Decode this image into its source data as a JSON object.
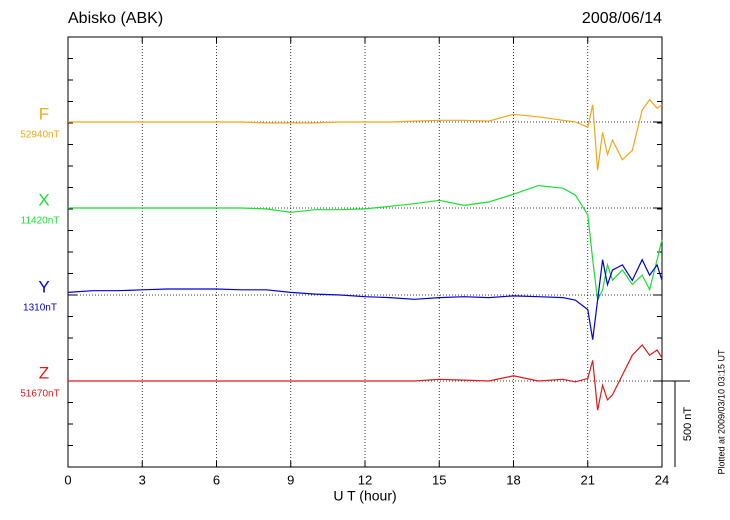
{
  "chart_data": {
    "type": "line",
    "title": "Abisko (ABK)",
    "date": "2008/06/14",
    "x_label": "U T (hour)",
    "footnote": "Plotted at 2009/03/10 03:15 UT",
    "xlim": [
      0,
      24
    ],
    "xticks": [
      0,
      3,
      6,
      9,
      12,
      15,
      18,
      21,
      24
    ],
    "grid": true,
    "scale_bar": {
      "value": 500,
      "label": "500 nT"
    },
    "x": [
      0,
      1,
      2,
      3,
      4,
      5,
      6,
      7,
      8,
      9,
      10,
      11,
      12,
      13,
      14,
      15,
      16,
      17,
      18,
      19,
      20,
      20.5,
      21,
      21.2,
      21.4,
      21.6,
      21.8,
      22,
      22.4,
      22.8,
      23.2,
      23.5,
      23.8,
      24
    ],
    "series": [
      {
        "name": "F",
        "color": "#f0a818",
        "baseline": {
          "value": 52940,
          "label": "52940nT"
        },
        "values": [
          52940,
          52940,
          52940,
          52940,
          52940,
          52940,
          52940,
          52940,
          52935,
          52935,
          52935,
          52940,
          52940,
          52940,
          52945,
          52950,
          52950,
          52945,
          52985,
          52970,
          52950,
          52940,
          52910,
          53040,
          52660,
          52880,
          52750,
          52835,
          52720,
          52775,
          53010,
          53070,
          53020,
          53040
        ]
      },
      {
        "name": "X",
        "color": "#18e030",
        "baseline": {
          "value": 11420,
          "label": "11420nT"
        },
        "values": [
          11420,
          11420,
          11420,
          11420,
          11420,
          11420,
          11420,
          11420,
          11415,
          11395,
          11410,
          11410,
          11415,
          11430,
          11445,
          11465,
          11435,
          11455,
          11500,
          11550,
          11535,
          11495,
          11380,
          11120,
          10885,
          10945,
          11090,
          11000,
          11060,
          10975,
          11030,
          10945,
          11120,
          11235
        ]
      },
      {
        "name": "Y",
        "color": "#0000d8",
        "baseline": {
          "value": 1310,
          "label": "1310nT"
        },
        "values": [
          1325,
          1335,
          1335,
          1340,
          1345,
          1345,
          1345,
          1340,
          1340,
          1325,
          1315,
          1310,
          1300,
          1295,
          1285,
          1295,
          1300,
          1295,
          1305,
          1300,
          1295,
          1280,
          1225,
          1050,
          1280,
          1515,
          1370,
          1455,
          1485,
          1395,
          1515,
          1425,
          1485,
          1395
        ]
      },
      {
        "name": "Z",
        "color": "#e01818",
        "baseline": {
          "value": 51670,
          "label": "51670nT"
        },
        "values": [
          51670,
          51670,
          51670,
          51670,
          51670,
          51670,
          51670,
          51670,
          51670,
          51670,
          51670,
          51670,
          51670,
          51670,
          51670,
          51680,
          51675,
          51670,
          51700,
          51670,
          51680,
          51665,
          51685,
          51790,
          51500,
          51645,
          51560,
          51590,
          51705,
          51820,
          51880,
          51820,
          51850,
          51805
        ]
      }
    ]
  }
}
